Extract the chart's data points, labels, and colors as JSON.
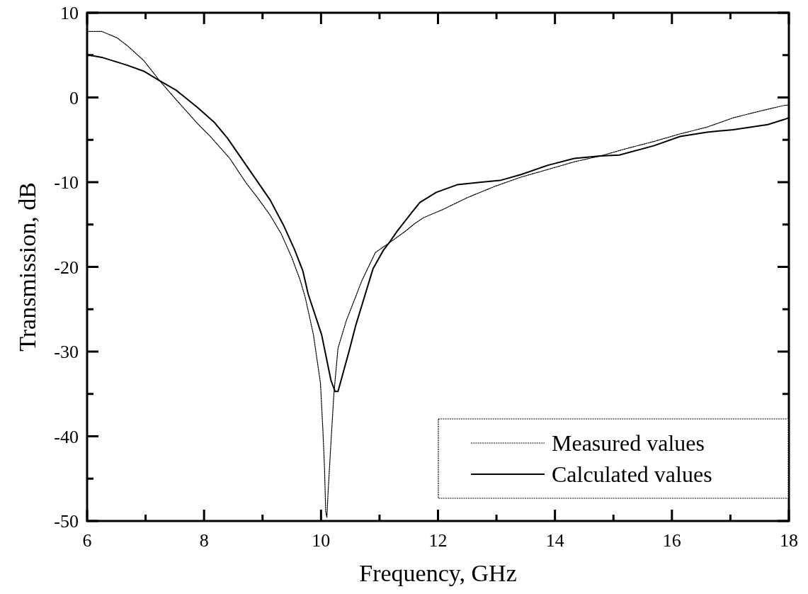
{
  "chart_data": {
    "type": "line",
    "xlabel": "Frequency, GHz",
    "ylabel": "Transmission, dB",
    "xlim": [
      6,
      18
    ],
    "ylim": [
      -50,
      10
    ],
    "xticks": [
      6,
      {
        "value": 7,
        "label": null
      },
      8,
      {
        "value": 9,
        "label": null
      },
      10,
      {
        "value": 11,
        "label": null
      },
      12,
      {
        "value": 13,
        "label": null
      },
      14,
      {
        "value": 15,
        "label": null
      },
      16,
      {
        "value": 17,
        "label": null
      },
      18
    ],
    "yticks": [
      -50,
      {
        "value": -45,
        "label": null
      },
      -40,
      {
        "value": -35,
        "label": null
      },
      -30,
      {
        "value": -25,
        "label": null
      },
      -20,
      {
        "value": -15,
        "label": null
      },
      -10,
      {
        "value": -5,
        "label": null
      },
      0,
      {
        "value": 5,
        "label": null
      },
      10
    ],
    "legend": "bottom right",
    "grid": false,
    "marker": "none",
    "series": [
      {
        "name": "Measured values",
        "color": "#000000",
        "line_style": "dotted",
        "x": [
          6,
          6.25,
          6.51,
          6.69,
          6.97,
          7.24,
          7.52,
          7.89,
          8.12,
          8.44,
          8.72,
          8.9,
          9.13,
          9.32,
          9.5,
          9.64,
          9.73,
          9.87,
          9.99,
          10.03,
          10.06,
          10.08,
          10.1,
          10.12,
          10.17,
          10.22,
          10.29,
          10.43,
          10.7,
          10.93,
          11.16,
          11.44,
          11.6,
          11.75,
          12.06,
          12.51,
          12.97,
          13.42,
          13.88,
          14.33,
          14.78,
          15.24,
          15.69,
          16.14,
          16.6,
          17.05,
          17.51,
          17.92,
          18
        ],
        "values": [
          7.8,
          7.8,
          7.05,
          6.1,
          4.35,
          1.98,
          -0.24,
          -3.1,
          -4.7,
          -7.2,
          -10.1,
          -11.7,
          -13.9,
          -16.1,
          -18.9,
          -21.5,
          -23.6,
          -28,
          -33.7,
          -39,
          -43.8,
          -48.9,
          -49.6,
          -46.7,
          -40.7,
          -35,
          -29.6,
          -26.4,
          -21.6,
          -18.3,
          -17.2,
          -15.8,
          -14.9,
          -14.2,
          -13.3,
          -11.8,
          -10.5,
          -9.4,
          -8.5,
          -7.6,
          -6.9,
          -6,
          -5.2,
          -4.3,
          -3.5,
          -2.4,
          -1.6,
          -0.94,
          -0.9
        ]
      },
      {
        "name": "Calculated values",
        "color": "#000000",
        "line_style": "solid",
        "x": [
          6,
          6.27,
          6.69,
          6.97,
          7.24,
          7.52,
          7.89,
          8.17,
          8.4,
          8.67,
          8.9,
          9.13,
          9.36,
          9.55,
          9.69,
          9.78,
          10.01,
          10.17,
          10.24,
          10.29,
          10.47,
          10.59,
          10.7,
          10.89,
          11.07,
          11.15,
          11.3,
          11.56,
          11.69,
          11.97,
          12.33,
          12.74,
          13.06,
          13.42,
          13.88,
          14.33,
          14.78,
          15.1,
          15.69,
          16.14,
          16.6,
          17.05,
          17.64,
          17.92,
          18
        ],
        "values": [
          5.05,
          4.7,
          3.8,
          3.1,
          1.98,
          0.87,
          -1.2,
          -2.9,
          -4.8,
          -7.5,
          -9.8,
          -12.1,
          -15.1,
          -18,
          -20.5,
          -23.2,
          -28,
          -33.4,
          -34.7,
          -34.7,
          -30.2,
          -27,
          -24.5,
          -20.2,
          -18,
          -17.3,
          -15.8,
          -13.5,
          -12.4,
          -11.2,
          -10.3,
          -10,
          -9.8,
          -9.1,
          -8,
          -7.2,
          -6.9,
          -6.8,
          -5.7,
          -4.6,
          -4.1,
          -3.8,
          -3.2,
          -2.6,
          -2.4
        ]
      }
    ]
  }
}
